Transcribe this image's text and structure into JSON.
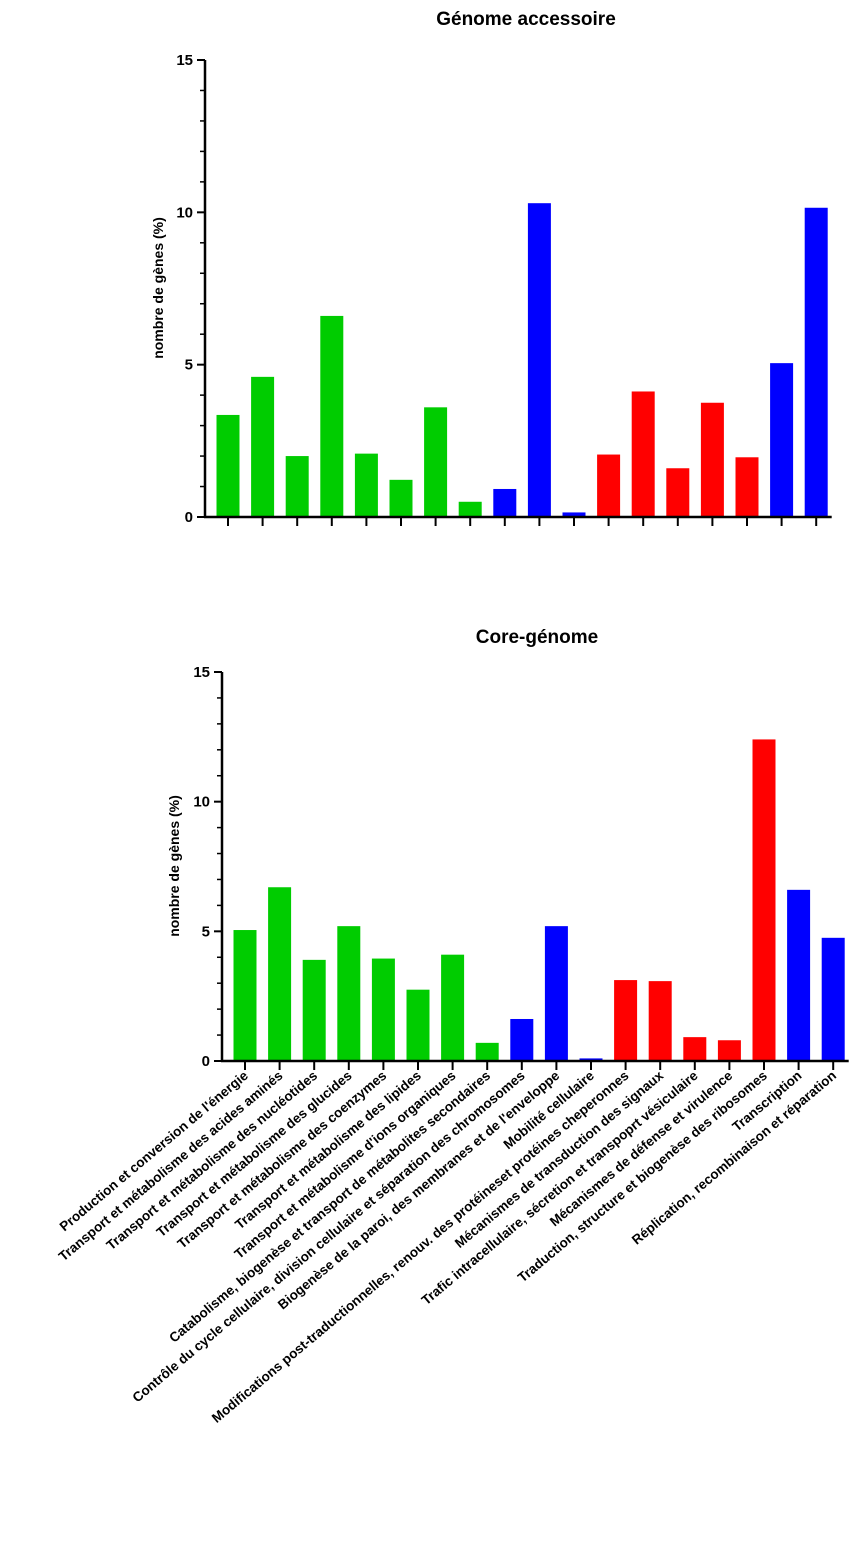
{
  "colors": {
    "green": "#00cc00",
    "blue": "#0000ff",
    "red": "#ff0000"
  },
  "category_labels": [
    "Production et conversion de l'énergie",
    "Transport et métabolisme des acides aminés",
    "Transport et métabolisme des nucléotides",
    "Transport et métabolisme des glucides",
    "Transport et métabolisme des coenzymes",
    "Transport et métabolisme des lipides",
    "Transport et métabolisme d'ions organiques",
    "Catabolisme, biogenèse et transport de métabolites secondaires",
    "Contrôle du cycle cellulaire, division cellulaire et séparation des chromosomes",
    "Biogenèse de la paroi, des membranes et de l'enveloppe",
    "Mobilité cellulaire",
    "Modifications post-traductionnelles, renouv. des protéineset protéines cheperonnes",
    "Mécanismes de transduction des signaux",
    "Trafic intracellulaire, sécretion et transpoprt vésiculaire",
    "Mécanismes de défense et virulence",
    "Traduction, structure et biogenèse des ribosomes",
    "Transcription",
    "Réplication, recombinaison et réparation"
  ],
  "chart_data": [
    {
      "type": "bar",
      "title": "Génome accessoire",
      "ylabel": "nombre de gènes (%)",
      "xlabel": "",
      "ylim": [
        0,
        15
      ],
      "yticks": [
        "0",
        "5",
        "10",
        "15"
      ],
      "show_category_labels": false,
      "values": [
        3.35,
        4.6,
        2.0,
        6.6,
        2.08,
        1.22,
        3.6,
        0.5,
        0.92,
        10.3,
        0.15,
        2.05,
        4.12,
        1.6,
        3.75,
        1.96,
        5.05,
        10.15
      ],
      "bar_colors": [
        "green",
        "green",
        "green",
        "green",
        "green",
        "green",
        "green",
        "green",
        "blue",
        "blue",
        "blue",
        "red",
        "red",
        "red",
        "red",
        "red",
        "blue",
        "blue"
      ]
    },
    {
      "type": "bar",
      "title": "Core-génome",
      "ylabel": "nombre de gènes (%)",
      "xlabel": "",
      "ylim": [
        0,
        15
      ],
      "yticks": [
        "0",
        "5",
        "10",
        "15"
      ],
      "show_category_labels": true,
      "values": [
        5.05,
        6.7,
        3.9,
        5.2,
        3.95,
        2.75,
        4.1,
        0.7,
        1.62,
        5.2,
        0.1,
        3.12,
        3.08,
        0.92,
        0.8,
        12.4,
        6.6,
        4.75
      ],
      "bar_colors": [
        "green",
        "green",
        "green",
        "green",
        "green",
        "green",
        "green",
        "green",
        "blue",
        "blue",
        "blue",
        "red",
        "red",
        "red",
        "red",
        "red",
        "blue",
        "blue"
      ]
    }
  ]
}
